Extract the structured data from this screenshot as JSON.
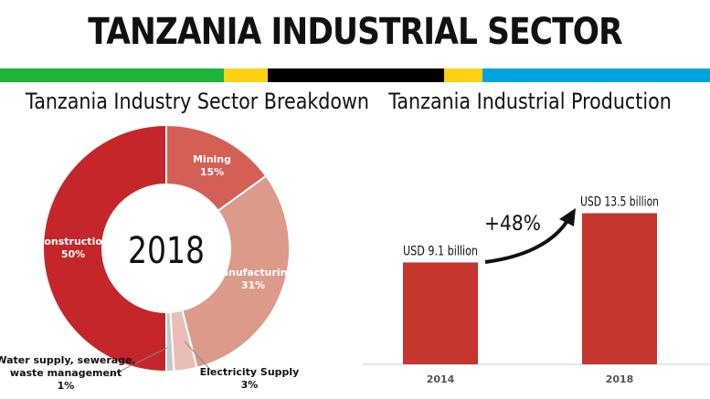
{
  "header": {
    "title": "TANZANIA INDUSTRIAL SECTOR",
    "stripe_colors": [
      "#1eb53a",
      "#fcd116",
      "#000000",
      "#fcd116",
      "#00a3dd"
    ]
  },
  "chart_data": [
    {
      "type": "pie",
      "title": "Tanzania Industry Sector Breakdown",
      "center_label": "2018",
      "slices": [
        {
          "label": "Mining",
          "value": 15,
          "value_label": "15%",
          "color": "#d45f55"
        },
        {
          "label": "Manufacturing",
          "value": 31,
          "value_label": "31%",
          "color": "#db9a8a"
        },
        {
          "label": "Electricity Supply",
          "value": 3,
          "value_label": "3%",
          "color": "#e9beb6"
        },
        {
          "label": "Water supply, sewerage, waste management",
          "label_lines": [
            "Water supply, sewerage,",
            "waste management"
          ],
          "value": 1,
          "value_label": "1%",
          "color": "#c7c7c7"
        },
        {
          "label": "Construction",
          "value": 50,
          "value_label": "50%",
          "color": "#c4262a"
        }
      ]
    },
    {
      "type": "bar",
      "title": "Tanzania Industrial Production",
      "categories": [
        "2014",
        "2018"
      ],
      "values": [
        9.1,
        13.5
      ],
      "value_labels": [
        "USD 9.1 billion",
        "USD 13.5 billion"
      ],
      "unit": "USD billion",
      "ylim": [
        0,
        15.5
      ],
      "annotation": "+48%",
      "bar_color": "#c4362e"
    }
  ]
}
